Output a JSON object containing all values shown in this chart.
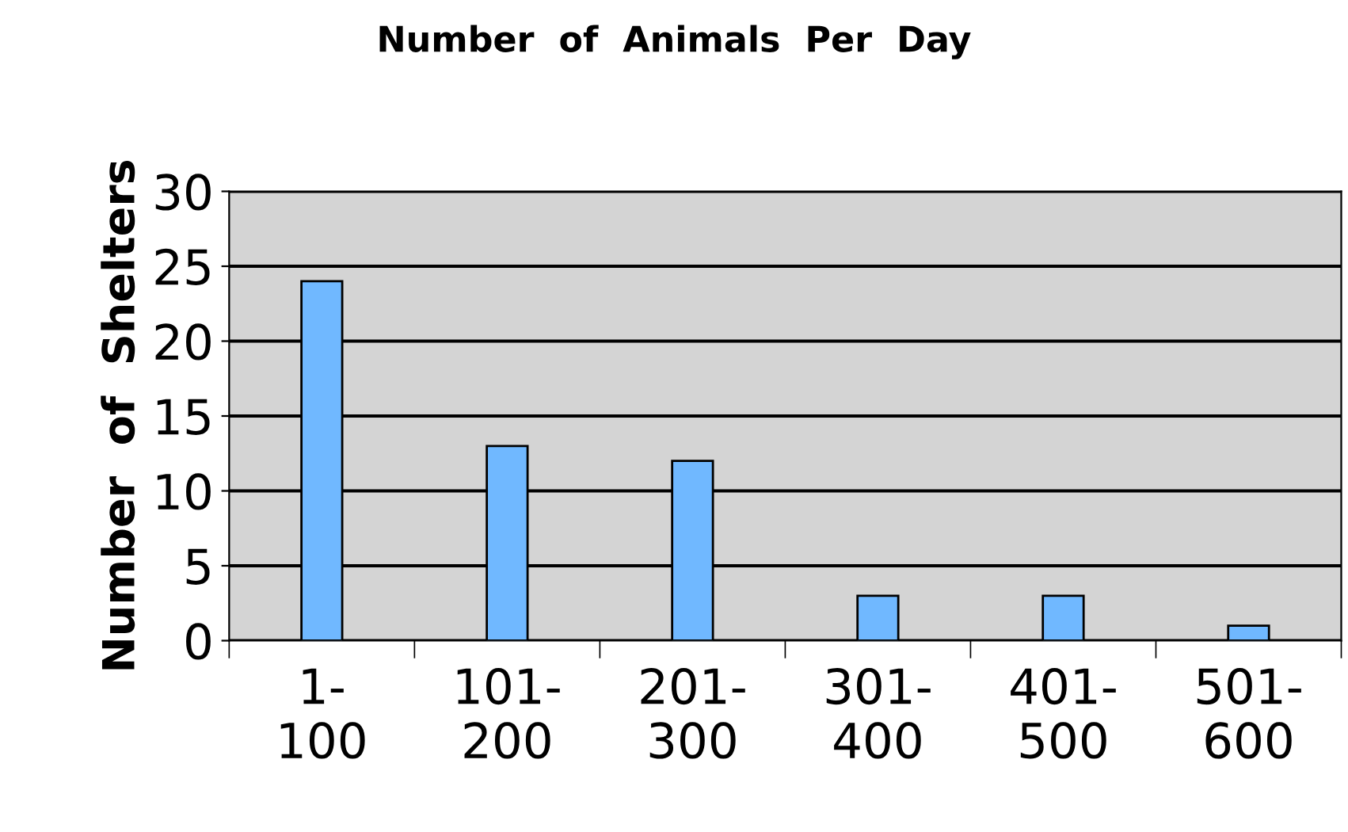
{
  "chart_data": {
    "type": "bar",
    "title": "Number  of  Animals  Per  Day",
    "ylabel": "Number  of  Shelters",
    "categories": [
      "1-\n100",
      "101-\n200",
      "201-\n300",
      "301-\n400",
      "401-\n500",
      "501-\n600"
    ],
    "values": [
      24,
      13,
      12,
      3,
      3,
      1
    ],
    "color": "#70b8ff",
    "ylim": [
      0,
      30
    ],
    "yticks": [
      0,
      5,
      10,
      15,
      20,
      25,
      30
    ],
    "grid": "y",
    "legend": false
  }
}
